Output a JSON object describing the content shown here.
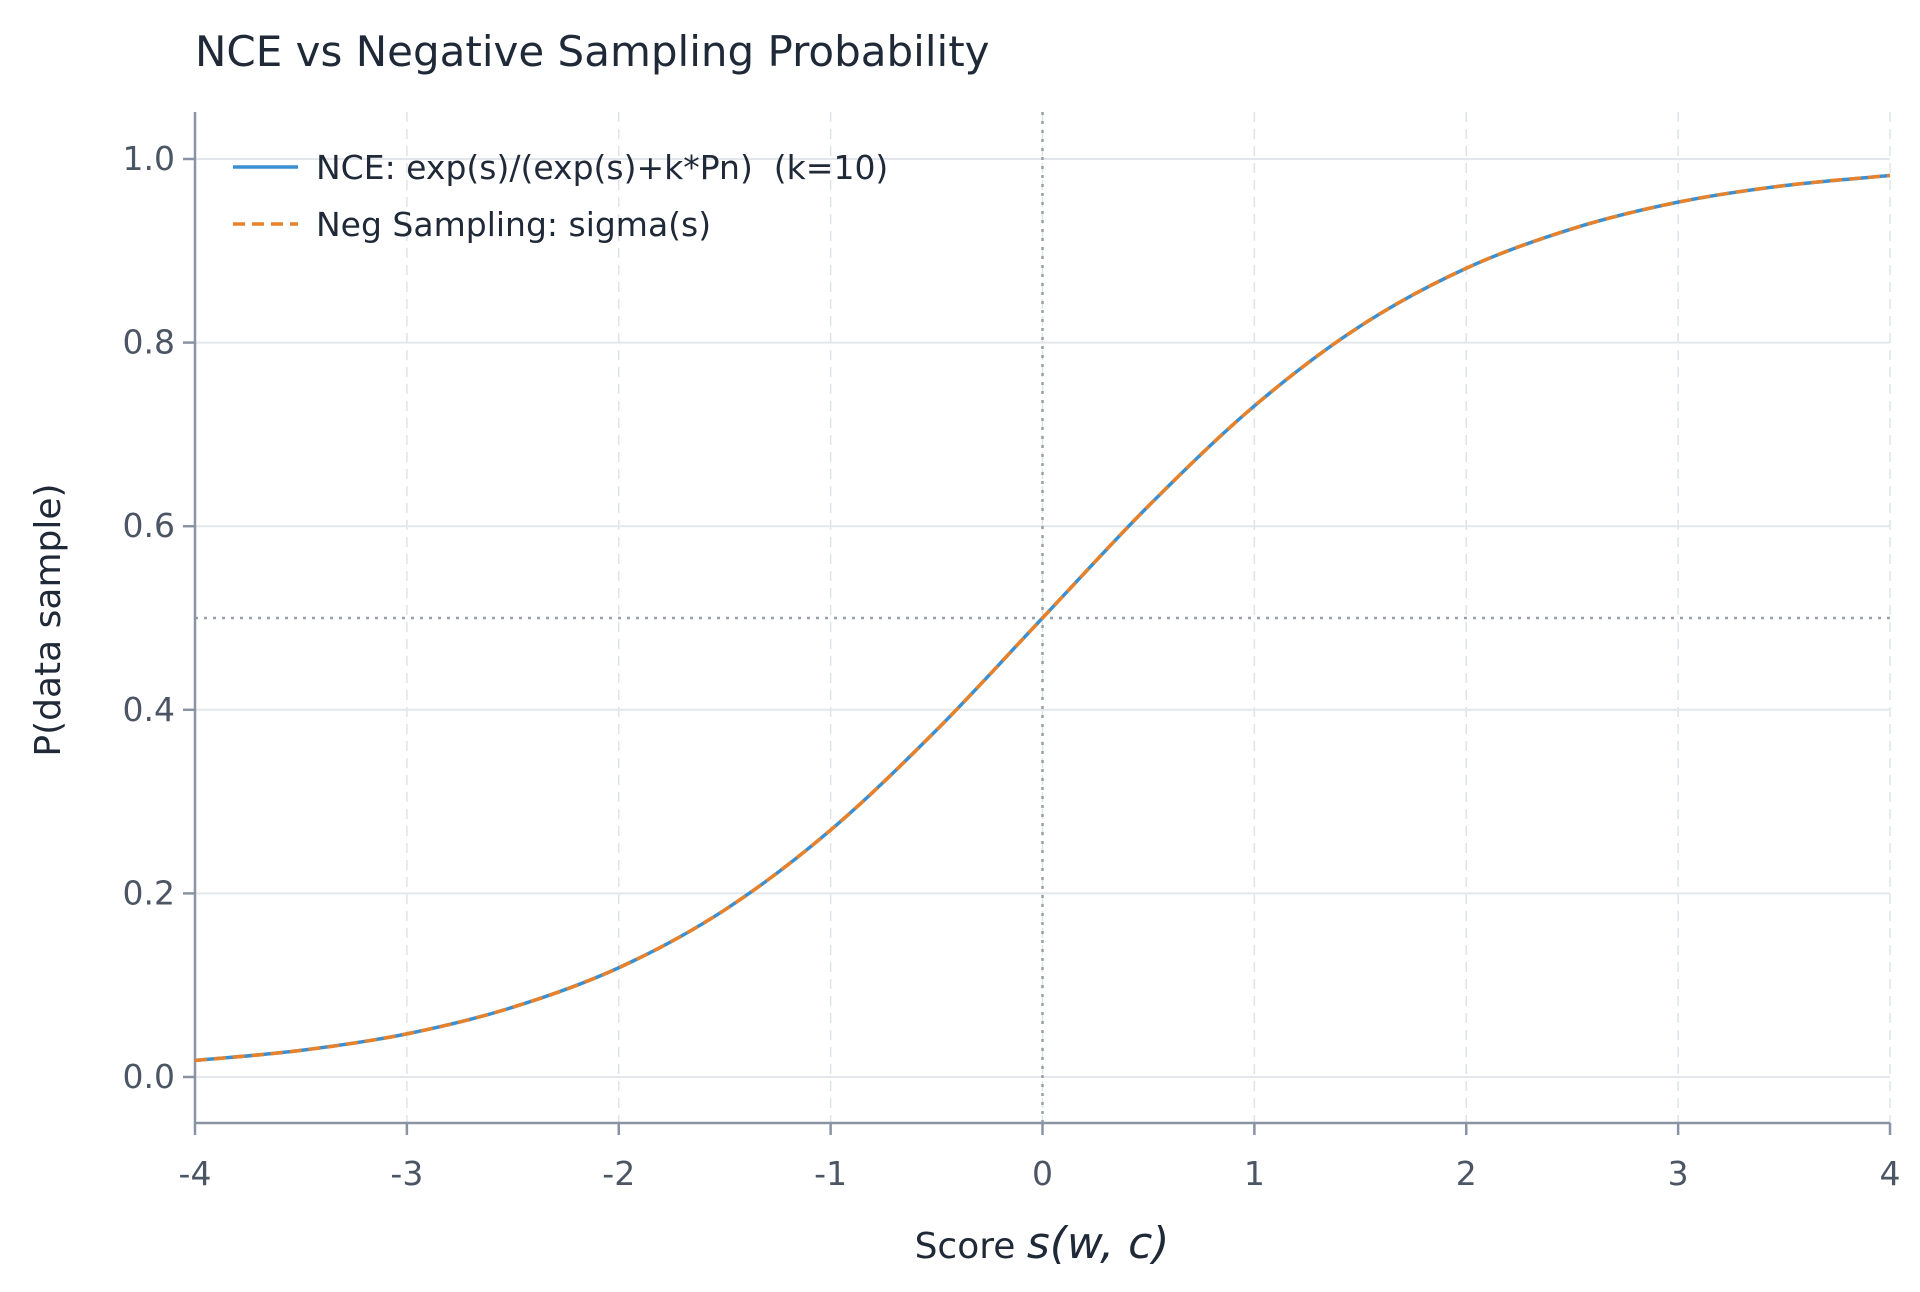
{
  "chart_data": {
    "type": "line",
    "title": "NCE vs Negative Sampling Probability",
    "xlabel_prefix": "Score ",
    "xlabel_math": "s(w, c)",
    "ylabel": "P(data sample)",
    "xlim": [
      -4,
      4
    ],
    "ylim": [
      -0.05,
      1.05
    ],
    "x_ticks": [
      -4,
      -3,
      -2,
      -1,
      0,
      1,
      2,
      3,
      4
    ],
    "x_tick_labels": [
      "-4",
      "-3",
      "-2",
      "-1",
      "0",
      "1",
      "2",
      "3",
      "4"
    ],
    "y_ticks": [
      0.0,
      0.2,
      0.4,
      0.6,
      0.8,
      1.0
    ],
    "y_tick_labels": [
      "0.0",
      "0.2",
      "0.4",
      "0.6",
      "0.8",
      "1.0"
    ],
    "grid": true,
    "reference_lines": {
      "y": 0.5,
      "x": 0
    },
    "legend_position": "top-left",
    "series": [
      {
        "name": "NCE: exp(s)/(exp(s)+k*Pn)  (k=10)",
        "color": "#3b8fd0",
        "style": "solid",
        "x": [
          -4,
          -3.5,
          -3,
          -2.5,
          -2,
          -1.5,
          -1,
          -0.5,
          0,
          0.5,
          1,
          1.5,
          2,
          2.5,
          3,
          3.5,
          4
        ],
        "y": [
          0.018,
          0.029,
          0.047,
          0.076,
          0.119,
          0.182,
          0.269,
          0.378,
          0.5,
          0.622,
          0.731,
          0.818,
          0.881,
          0.924,
          0.953,
          0.971,
          0.982
        ]
      },
      {
        "name": "Neg Sampling: sigma(s)",
        "color": "#e8822a",
        "style": "dashed",
        "x": [
          -4,
          -3.5,
          -3,
          -2.5,
          -2,
          -1.5,
          -1,
          -0.5,
          0,
          0.5,
          1,
          1.5,
          2,
          2.5,
          3,
          3.5,
          4
        ],
        "y": [
          0.018,
          0.029,
          0.047,
          0.076,
          0.119,
          0.182,
          0.269,
          0.378,
          0.5,
          0.622,
          0.731,
          0.818,
          0.881,
          0.924,
          0.953,
          0.971,
          0.982
        ]
      }
    ]
  }
}
